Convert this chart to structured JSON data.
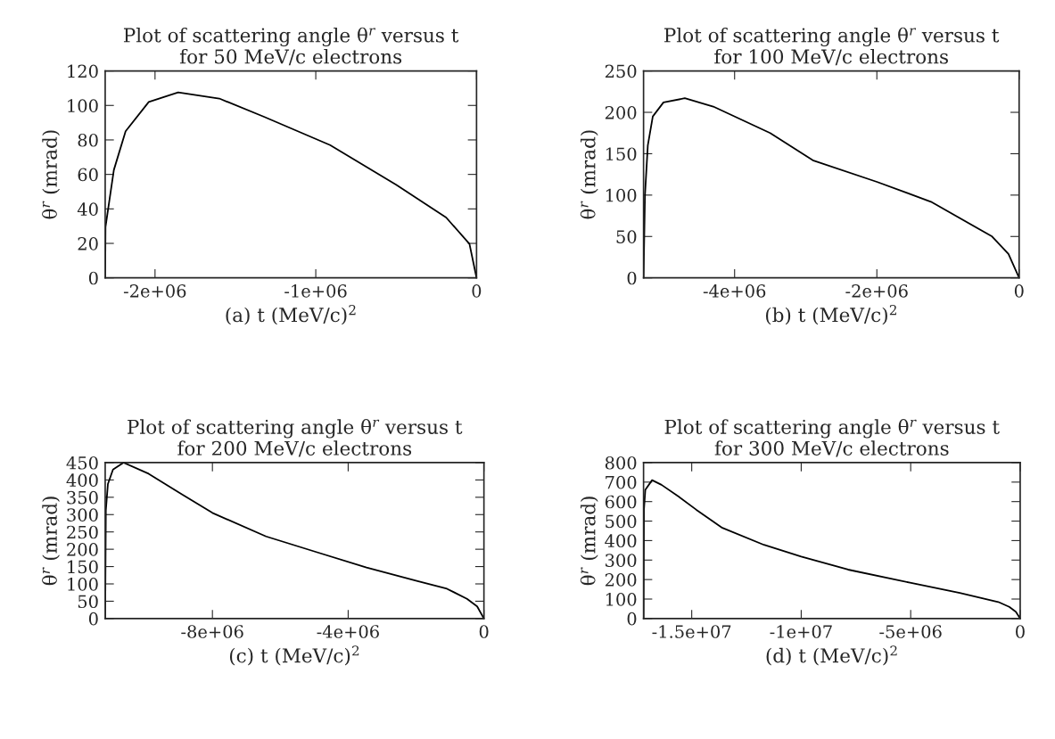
{
  "chart_data": [
    {
      "type": "line",
      "title": "Plot of scattering angle θ$^{r}$ versus t\nfor 50 MeV/c electrons",
      "xlabel": "(a) t (MeV/c)$^{2}$",
      "ylabel": "θ$^{r}$ (mrad)",
      "xlim": [
        -2310000,
        0
      ],
      "xticks": [
        {
          "value": -2000000,
          "label": "-2e+06"
        },
        {
          "value": -1000000,
          "label": "-1e+06"
        },
        0
      ],
      "ylim": [
        0,
        120
      ],
      "yticks": [
        0,
        20,
        40,
        60,
        80,
        100,
        120
      ],
      "grid": false,
      "legend": false,
      "series": [
        {
          "color": "#000000",
          "x": [
            -2310000,
            -2308000,
            -2256000,
            -2183000,
            -2039000,
            -1856000,
            -1600000,
            -1322000,
            -911000,
            -500000,
            -189000,
            -44000,
            0
          ],
          "values": [
            0,
            29.5,
            62.6,
            85,
            102,
            107.6,
            104,
            93.4,
            77,
            54,
            35,
            19.7,
            0
          ]
        }
      ]
    },
    {
      "type": "line",
      "title": "Plot of scattering angle θ$^{r}$ versus t\nfor 100 MeV/c electrons",
      "xlabel": "(b) t (MeV/c)$^{2}$",
      "ylabel": "θ$^{r}$ (mrad)",
      "xlim": [
        -5280000,
        0
      ],
      "xticks": [
        {
          "value": -4000000,
          "label": "-4e+06"
        },
        {
          "value": -2000000,
          "label": "-2e+06"
        },
        0
      ],
      "ylim": [
        0,
        250
      ],
      "yticks": [
        0,
        50,
        100,
        150,
        200,
        250
      ],
      "grid": false,
      "legend": false,
      "series": [
        {
          "color": "#000000",
          "x": [
            -5280000,
            -5260000,
            -5220000,
            -5150000,
            -5000000,
            -4700000,
            -4300000,
            -3500000,
            -2900000,
            -2000000,
            -1240000,
            -380000,
            -150000,
            0
          ],
          "values": [
            0,
            100,
            160,
            195,
            212,
            217,
            207,
            175,
            142,
            116,
            92,
            50,
            29,
            0
          ]
        }
      ]
    },
    {
      "type": "line",
      "title": "Plot of scattering angle θ$^{r}$ versus t\nfor 200 MeV/c electrons",
      "xlabel": "(c) t (MeV/c)$^{2}$",
      "ylabel": "θ$^{r}$ (mrad)",
      "xlim": [
        -11160000,
        0
      ],
      "xticks": [
        {
          "value": -8000000,
          "label": "-8e+06"
        },
        {
          "value": -4000000,
          "label": "-4e+06"
        },
        0
      ],
      "ylim": [
        0,
        450
      ],
      "yticks": [
        0,
        50,
        100,
        150,
        200,
        250,
        300,
        350,
        400,
        450
      ],
      "grid": false,
      "legend": false,
      "series": [
        {
          "color": "#000000",
          "x": [
            -11160000,
            -11140000,
            -11080000,
            -10930000,
            -10620000,
            -9880000,
            -8890000,
            -8000000,
            -6420000,
            -4940000,
            -3460000,
            -1980000,
            -1090000,
            -500000,
            -200000,
            0
          ],
          "values": [
            0,
            313,
            388,
            430,
            450,
            418,
            358,
            305,
            237,
            192,
            147,
            109,
            86,
            57,
            35,
            0
          ]
        }
      ]
    },
    {
      "type": "line",
      "title": "Plot of scattering angle θ$^{r}$ versus t\nfor 300 MeV/c electrons",
      "xlabel": "(d) t (MeV/c)$^{2}$",
      "ylabel": "θ$^{r}$ (mrad)",
      "xlim": [
        -17200000,
        0
      ],
      "xticks": [
        {
          "value": -15000000,
          "label": "-1.5e+07"
        },
        {
          "value": -10000000,
          "label": "-1e+07"
        },
        {
          "value": -5000000,
          "label": "-5e+06"
        },
        0
      ],
      "ylim": [
        0,
        800
      ],
      "yticks": [
        0,
        100,
        200,
        300,
        400,
        500,
        600,
        700,
        800
      ],
      "grid": false,
      "legend": false,
      "series": [
        {
          "color": "#000000",
          "x": [
            -17200000,
            -17180000,
            -17120000,
            -16810000,
            -16380000,
            -15600000,
            -14800000,
            -13600000,
            -11700000,
            -10000000,
            -7860000,
            -5030000,
            -2760000,
            -1000000,
            -500000,
            -200000,
            0
          ],
          "values": [
            0,
            560,
            660,
            710,
            686,
            626,
            559,
            465,
            378,
            318,
            251,
            184,
            131,
            85,
            60,
            35,
            0
          ]
        }
      ]
    }
  ]
}
